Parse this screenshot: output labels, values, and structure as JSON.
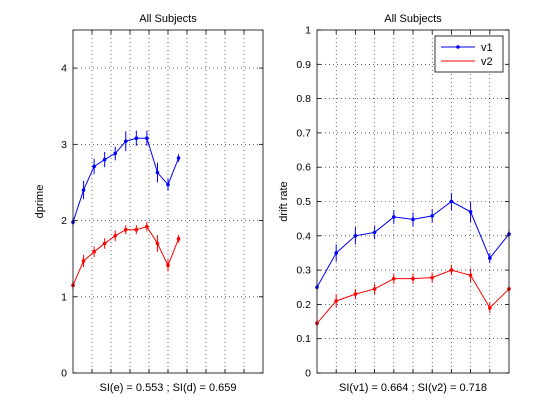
{
  "chart_data": [
    {
      "type": "line",
      "title": "All Subjects",
      "ylabel": "dprime",
      "xlabel": "SI(e) = 0.553 ; SI(d) = 0.659",
      "xlim": [
        1,
        10
      ],
      "ylim": [
        0,
        4.5
      ],
      "yticks": [
        0,
        1,
        2,
        3,
        4
      ],
      "xticks": [
        1,
        2,
        3,
        4,
        5,
        6,
        7,
        8,
        9,
        10
      ],
      "grid": true,
      "legend": null,
      "series": [
        {
          "color": "#0000ff",
          "x": [
            1,
            1.5,
            2,
            2.5,
            3,
            3.5,
            4,
            4.5,
            5,
            5.5,
            6
          ],
          "y": [
            1.98,
            2.4,
            2.71,
            2.8,
            2.88,
            3.04,
            3.08,
            3.08,
            2.63,
            2.47,
            2.82
          ],
          "err": [
            0.05,
            0.12,
            0.1,
            0.1,
            0.09,
            0.13,
            0.1,
            0.1,
            0.13,
            0.08,
            0.05
          ]
        },
        {
          "color": "#ff0000",
          "x": [
            1,
            1.5,
            2,
            2.5,
            3,
            3.5,
            4,
            4.5,
            5,
            5.5,
            6
          ],
          "y": [
            1.15,
            1.47,
            1.59,
            1.7,
            1.8,
            1.88,
            1.88,
            1.92,
            1.7,
            1.41,
            1.76
          ],
          "err": [
            0.05,
            0.08,
            0.07,
            0.07,
            0.07,
            0.06,
            0.06,
            0.06,
            0.11,
            0.08,
            0.05
          ]
        }
      ]
    },
    {
      "type": "line",
      "title": "All Subjects",
      "ylabel": "drift rate",
      "xlabel": "SI(v1) = 0.664 ; SI(v2) = 0.718",
      "xlim": [
        1,
        6
      ],
      "ylim": [
        0,
        1
      ],
      "yticks": [
        0,
        0.1,
        0.2,
        0.3,
        0.4,
        0.5,
        0.6,
        0.7,
        0.8,
        0.9,
        1
      ],
      "grid": true,
      "legend": "top-right",
      "series": [
        {
          "name": "v1",
          "color": "#0000ff",
          "x": [
            1,
            1.5,
            2,
            2.5,
            3,
            3.5,
            4,
            4.5,
            5,
            5.5,
            6
          ],
          "y": [
            0.25,
            0.35,
            0.4,
            0.41,
            0.455,
            0.448,
            0.458,
            0.5,
            0.47,
            0.335,
            0.405
          ],
          "err": [
            0.01,
            0.025,
            0.025,
            0.02,
            0.02,
            0.02,
            0.02,
            0.025,
            0.03,
            0.015,
            0.01
          ]
        },
        {
          "name": "v2",
          "color": "#ff0000",
          "x": [
            1,
            1.5,
            2,
            2.5,
            3,
            3.5,
            4,
            4.5,
            5,
            5.5,
            6
          ],
          "y": [
            0.145,
            0.21,
            0.23,
            0.245,
            0.275,
            0.275,
            0.278,
            0.3,
            0.285,
            0.19,
            0.245
          ],
          "err": [
            0.01,
            0.02,
            0.015,
            0.015,
            0.015,
            0.015,
            0.015,
            0.015,
            0.02,
            0.015,
            0.01
          ]
        }
      ]
    }
  ]
}
